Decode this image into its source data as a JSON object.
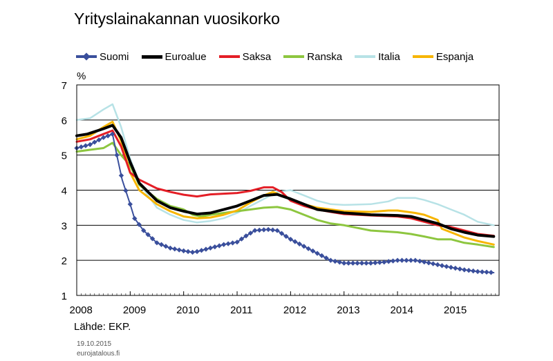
{
  "chart_data": {
    "type": "line",
    "title": "Yrityslainakannan vuosikorko",
    "ylabel": "%",
    "ylim": [
      1,
      7
    ],
    "yticks": [
      "1",
      "2",
      "3",
      "4",
      "5",
      "6",
      "7"
    ],
    "xlim": [
      2008.0,
      2015.9
    ],
    "xticks": [
      "2008",
      "2009",
      "2010",
      "2011",
      "2012",
      "2013",
      "2014",
      "2015"
    ],
    "grid": true,
    "legend_position": "top",
    "series": [
      {
        "name": "Suomi",
        "color": "#3a4f9c",
        "marker": "diamond",
        "points": [
          [
            2008.0,
            5.2
          ],
          [
            2008.25,
            5.3
          ],
          [
            2008.5,
            5.5
          ],
          [
            2008.67,
            5.6
          ],
          [
            2008.75,
            5.0
          ],
          [
            2008.85,
            4.3
          ],
          [
            2009.0,
            3.6
          ],
          [
            2009.08,
            3.2
          ],
          [
            2009.25,
            2.85
          ],
          [
            2009.5,
            2.5
          ],
          [
            2009.75,
            2.35
          ],
          [
            2010.0,
            2.27
          ],
          [
            2010.17,
            2.23
          ],
          [
            2010.25,
            2.25
          ],
          [
            2010.5,
            2.35
          ],
          [
            2010.75,
            2.45
          ],
          [
            2011.0,
            2.52
          ],
          [
            2011.17,
            2.7
          ],
          [
            2011.33,
            2.85
          ],
          [
            2011.58,
            2.88
          ],
          [
            2011.75,
            2.85
          ],
          [
            2012.0,
            2.6
          ],
          [
            2012.25,
            2.4
          ],
          [
            2012.5,
            2.2
          ],
          [
            2012.75,
            2.0
          ],
          [
            2013.0,
            1.92
          ],
          [
            2013.5,
            1.92
          ],
          [
            2013.75,
            1.95
          ],
          [
            2014.0,
            2.0
          ],
          [
            2014.33,
            2.0
          ],
          [
            2014.58,
            1.93
          ],
          [
            2014.83,
            1.85
          ],
          [
            2015.0,
            1.8
          ],
          [
            2015.25,
            1.73
          ],
          [
            2015.5,
            1.68
          ],
          [
            2015.8,
            1.65
          ]
        ]
      },
      {
        "name": "Euroalue",
        "color": "#000000",
        "marker": "none",
        "points": [
          [
            2008.0,
            5.55
          ],
          [
            2008.2,
            5.6
          ],
          [
            2008.5,
            5.75
          ],
          [
            2008.67,
            5.85
          ],
          [
            2008.83,
            5.5
          ],
          [
            2009.0,
            4.8
          ],
          [
            2009.17,
            4.2
          ],
          [
            2009.5,
            3.7
          ],
          [
            2009.75,
            3.5
          ],
          [
            2010.0,
            3.4
          ],
          [
            2010.25,
            3.32
          ],
          [
            2010.5,
            3.35
          ],
          [
            2010.75,
            3.45
          ],
          [
            2011.0,
            3.55
          ],
          [
            2011.25,
            3.7
          ],
          [
            2011.5,
            3.85
          ],
          [
            2011.75,
            3.88
          ],
          [
            2012.0,
            3.75
          ],
          [
            2012.25,
            3.6
          ],
          [
            2012.5,
            3.45
          ],
          [
            2012.75,
            3.4
          ],
          [
            2013.0,
            3.35
          ],
          [
            2013.5,
            3.3
          ],
          [
            2014.0,
            3.28
          ],
          [
            2014.25,
            3.25
          ],
          [
            2014.5,
            3.15
          ],
          [
            2014.75,
            3.05
          ],
          [
            2015.0,
            2.9
          ],
          [
            2015.25,
            2.8
          ],
          [
            2015.5,
            2.72
          ],
          [
            2015.8,
            2.68
          ]
        ]
      },
      {
        "name": "Saksa",
        "color": "#e41e26",
        "marker": "none",
        "points": [
          [
            2008.0,
            5.38
          ],
          [
            2008.25,
            5.45
          ],
          [
            2008.5,
            5.6
          ],
          [
            2008.67,
            5.7
          ],
          [
            2008.83,
            5.25
          ],
          [
            2009.0,
            4.5
          ],
          [
            2009.17,
            4.3
          ],
          [
            2009.5,
            4.05
          ],
          [
            2009.75,
            3.95
          ],
          [
            2010.0,
            3.87
          ],
          [
            2010.25,
            3.82
          ],
          [
            2010.5,
            3.88
          ],
          [
            2010.75,
            3.9
          ],
          [
            2011.0,
            3.92
          ],
          [
            2011.25,
            3.98
          ],
          [
            2011.5,
            4.08
          ],
          [
            2011.67,
            4.08
          ],
          [
            2011.83,
            3.95
          ],
          [
            2012.0,
            3.7
          ],
          [
            2012.25,
            3.55
          ],
          [
            2012.5,
            3.45
          ],
          [
            2012.75,
            3.38
          ],
          [
            2013.0,
            3.32
          ],
          [
            2013.5,
            3.28
          ],
          [
            2014.0,
            3.25
          ],
          [
            2014.25,
            3.2
          ],
          [
            2014.5,
            3.1
          ],
          [
            2014.75,
            3.0
          ],
          [
            2015.0,
            2.95
          ],
          [
            2015.25,
            2.85
          ],
          [
            2015.5,
            2.75
          ],
          [
            2015.8,
            2.7
          ]
        ]
      },
      {
        "name": "Ranska",
        "color": "#8dc63f",
        "marker": "none",
        "points": [
          [
            2008.0,
            5.1
          ],
          [
            2008.25,
            5.15
          ],
          [
            2008.5,
            5.2
          ],
          [
            2008.67,
            5.35
          ],
          [
            2008.83,
            5.0
          ],
          [
            2009.0,
            4.7
          ],
          [
            2009.17,
            4.15
          ],
          [
            2009.5,
            3.75
          ],
          [
            2009.75,
            3.55
          ],
          [
            2010.0,
            3.45
          ],
          [
            2010.17,
            3.3
          ],
          [
            2010.33,
            3.25
          ],
          [
            2010.5,
            3.3
          ],
          [
            2010.75,
            3.35
          ],
          [
            2011.0,
            3.4
          ],
          [
            2011.25,
            3.45
          ],
          [
            2011.5,
            3.5
          ],
          [
            2011.75,
            3.52
          ],
          [
            2012.0,
            3.45
          ],
          [
            2012.25,
            3.3
          ],
          [
            2012.5,
            3.15
          ],
          [
            2012.75,
            3.05
          ],
          [
            2013.0,
            3.0
          ],
          [
            2013.5,
            2.85
          ],
          [
            2014.0,
            2.8
          ],
          [
            2014.25,
            2.75
          ],
          [
            2014.5,
            2.68
          ],
          [
            2014.75,
            2.6
          ],
          [
            2015.0,
            2.6
          ],
          [
            2015.25,
            2.5
          ],
          [
            2015.5,
            2.45
          ],
          [
            2015.8,
            2.38
          ]
        ]
      },
      {
        "name": "Italia",
        "color": "#b7e2e6",
        "marker": "none",
        "points": [
          [
            2008.0,
            6.0
          ],
          [
            2008.25,
            6.05
          ],
          [
            2008.5,
            6.3
          ],
          [
            2008.67,
            6.45
          ],
          [
            2008.83,
            5.8
          ],
          [
            2009.0,
            4.9
          ],
          [
            2009.17,
            4.2
          ],
          [
            2009.5,
            3.5
          ],
          [
            2009.75,
            3.3
          ],
          [
            2010.0,
            3.15
          ],
          [
            2010.25,
            3.08
          ],
          [
            2010.5,
            3.12
          ],
          [
            2010.75,
            3.2
          ],
          [
            2011.0,
            3.35
          ],
          [
            2011.25,
            3.55
          ],
          [
            2011.5,
            3.75
          ],
          [
            2011.75,
            3.95
          ],
          [
            2012.0,
            4.0
          ],
          [
            2012.25,
            3.85
          ],
          [
            2012.5,
            3.7
          ],
          [
            2012.75,
            3.6
          ],
          [
            2013.0,
            3.58
          ],
          [
            2013.5,
            3.6
          ],
          [
            2013.83,
            3.68
          ],
          [
            2014.0,
            3.78
          ],
          [
            2014.33,
            3.78
          ],
          [
            2014.5,
            3.72
          ],
          [
            2014.75,
            3.6
          ],
          [
            2015.0,
            3.45
          ],
          [
            2015.25,
            3.3
          ],
          [
            2015.5,
            3.1
          ],
          [
            2015.8,
            3.0
          ]
        ]
      },
      {
        "name": "Espanja",
        "color": "#f7b500",
        "marker": "none",
        "points": [
          [
            2008.0,
            5.45
          ],
          [
            2008.25,
            5.55
          ],
          [
            2008.5,
            5.8
          ],
          [
            2008.67,
            5.95
          ],
          [
            2008.83,
            5.4
          ],
          [
            2009.0,
            4.5
          ],
          [
            2009.17,
            4.0
          ],
          [
            2009.5,
            3.6
          ],
          [
            2009.75,
            3.4
          ],
          [
            2010.0,
            3.25
          ],
          [
            2010.25,
            3.2
          ],
          [
            2010.5,
            3.22
          ],
          [
            2010.75,
            3.3
          ],
          [
            2011.0,
            3.42
          ],
          [
            2011.25,
            3.65
          ],
          [
            2011.5,
            3.85
          ],
          [
            2011.67,
            3.95
          ],
          [
            2011.83,
            3.85
          ],
          [
            2012.0,
            3.75
          ],
          [
            2012.25,
            3.6
          ],
          [
            2012.5,
            3.5
          ],
          [
            2012.75,
            3.45
          ],
          [
            2013.0,
            3.4
          ],
          [
            2013.5,
            3.38
          ],
          [
            2013.83,
            3.42
          ],
          [
            2014.0,
            3.42
          ],
          [
            2014.33,
            3.35
          ],
          [
            2014.5,
            3.3
          ],
          [
            2014.75,
            3.15
          ],
          [
            2014.83,
            2.9
          ],
          [
            2015.0,
            2.8
          ],
          [
            2015.25,
            2.65
          ],
          [
            2015.5,
            2.55
          ],
          [
            2015.8,
            2.45
          ]
        ]
      }
    ]
  },
  "notes": {
    "source": "Lähde: EKP.",
    "date": "19.10.2015",
    "site": "eurojatalous.fi"
  }
}
